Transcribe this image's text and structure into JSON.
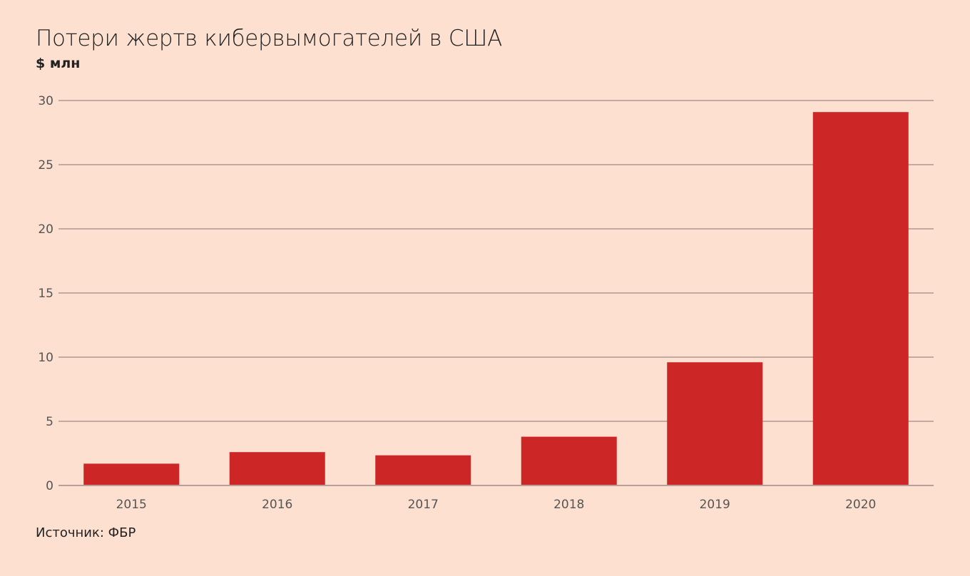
{
  "chart_data": {
    "type": "bar",
    "title": "Потери жертв кибервымогателей в США",
    "ylabel": "$ млн",
    "xlabel": "",
    "categories": [
      "2015",
      "2016",
      "2017",
      "2018",
      "2019",
      "2020"
    ],
    "values": [
      1.7,
      2.6,
      2.35,
      3.8,
      9.6,
      29.1
    ],
    "ylim": [
      0,
      30
    ],
    "yticks": [
      0,
      5,
      10,
      15,
      20,
      25,
      30
    ],
    "grid": true,
    "source": "Источник: ФБР",
    "colors": {
      "bar": "#cc2626",
      "background": "#fee0d0",
      "grid": "#b8a096"
    }
  }
}
